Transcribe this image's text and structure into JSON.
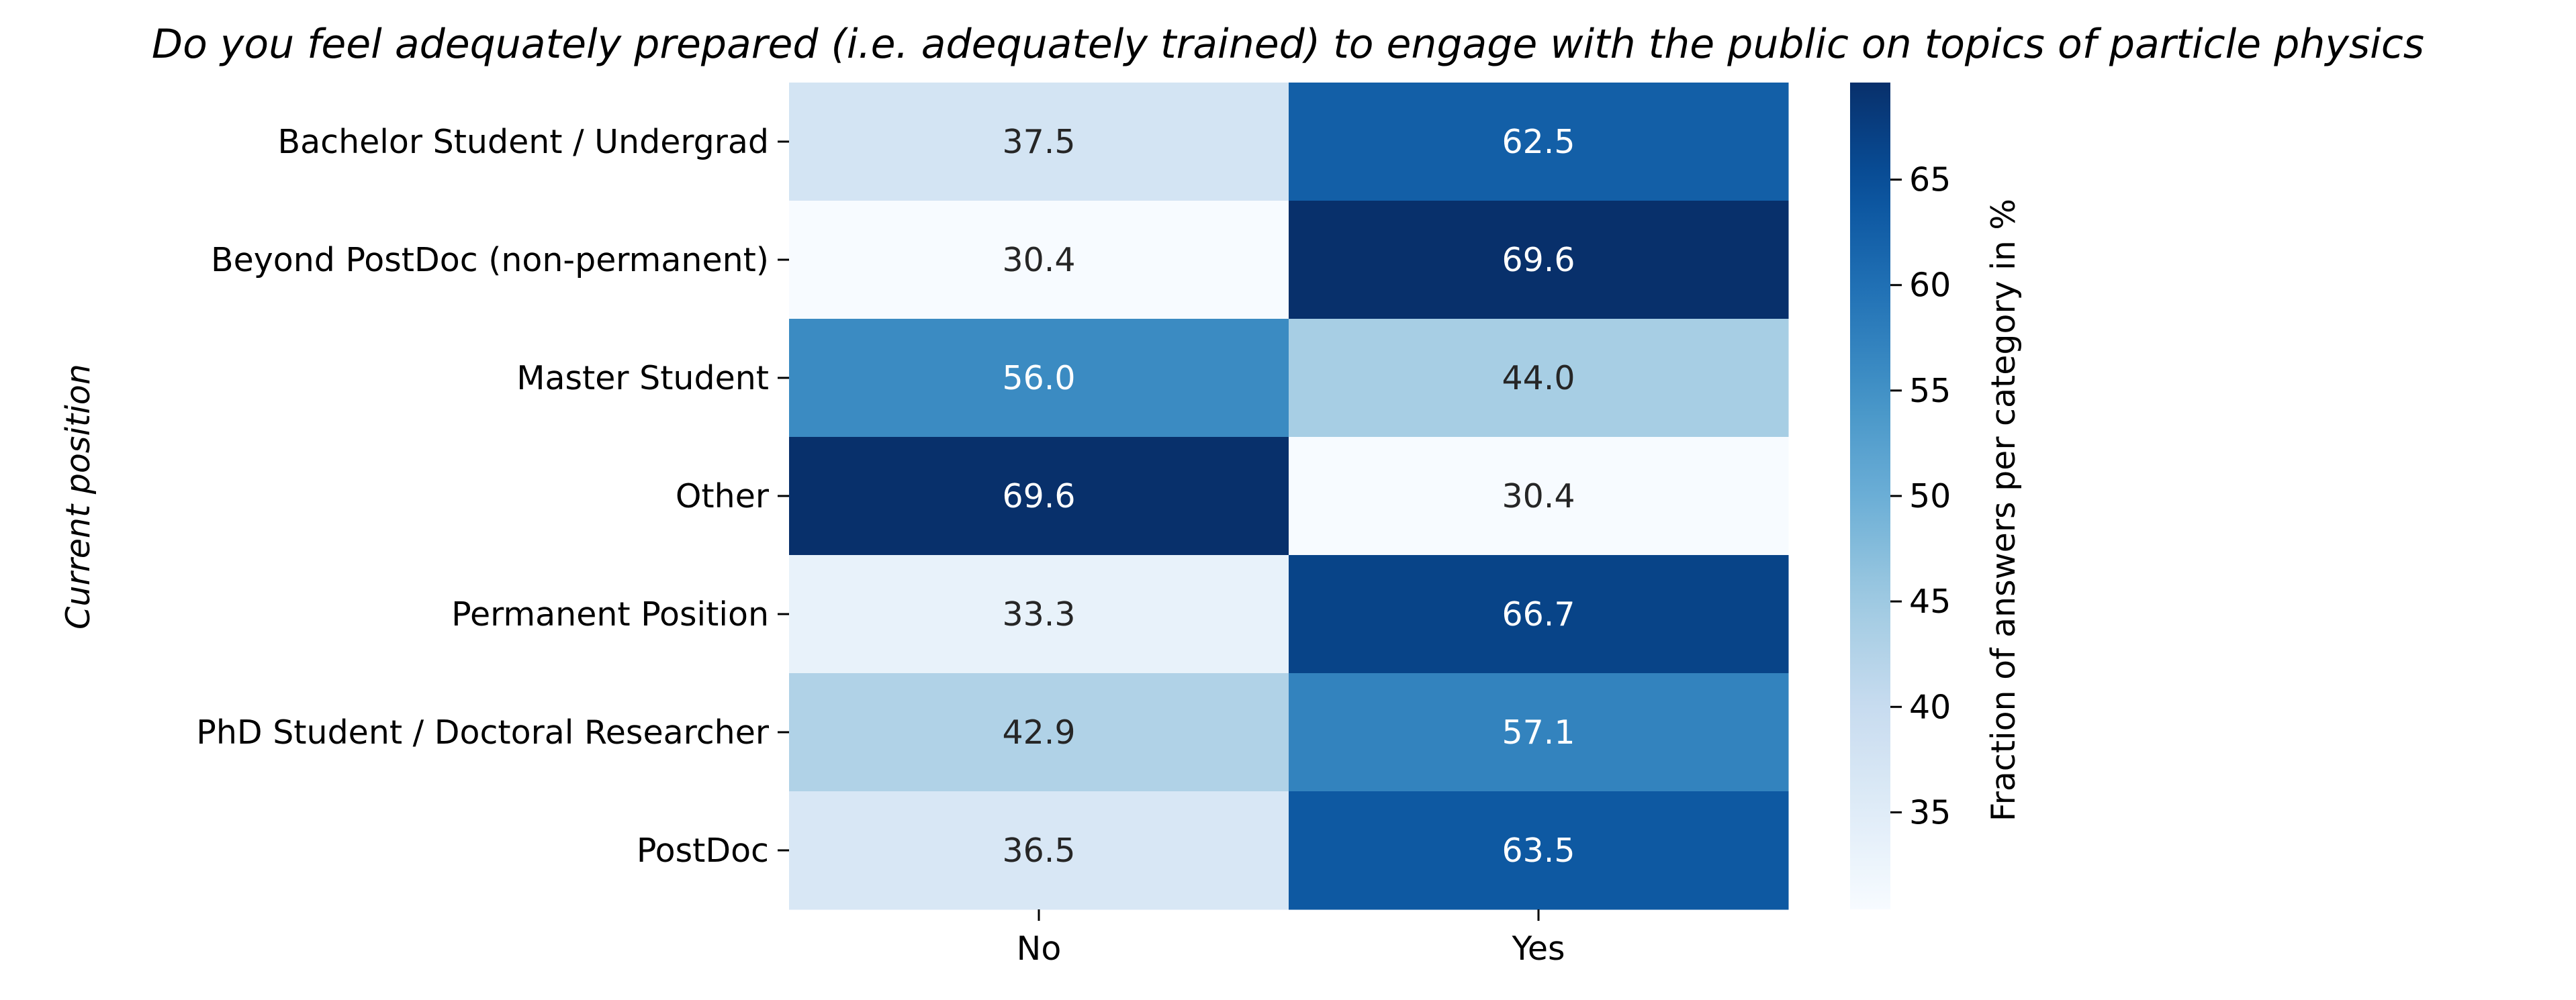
{
  "chart_data": {
    "type": "heatmap",
    "title": "Do you feel adequately prepared (i.e. adequately trained) to engage with the public on topics of particle physics",
    "xlabel": "",
    "ylabel": "Current position",
    "x_categories": [
      "No",
      "Yes"
    ],
    "y_categories": [
      "Bachelor Student / Undergrad",
      "Beyond PostDoc (non-permanent)",
      "Master Student",
      "Other",
      "Permanent Position",
      "PhD Student / Doctoral Researcher",
      "PostDoc"
    ],
    "values": [
      [
        37.5,
        62.5
      ],
      [
        30.4,
        69.6
      ],
      [
        56.0,
        44.0
      ],
      [
        69.6,
        30.4
      ],
      [
        33.3,
        66.7
      ],
      [
        42.9,
        57.1
      ],
      [
        36.5,
        63.5
      ]
    ],
    "colormap": "Blues",
    "value_range": [
      30.4,
      69.6
    ],
    "colorbar": {
      "label": "Fraction of answers per category in %",
      "ticks": [
        35,
        40,
        45,
        50,
        55,
        60,
        65
      ]
    },
    "grid": false
  }
}
